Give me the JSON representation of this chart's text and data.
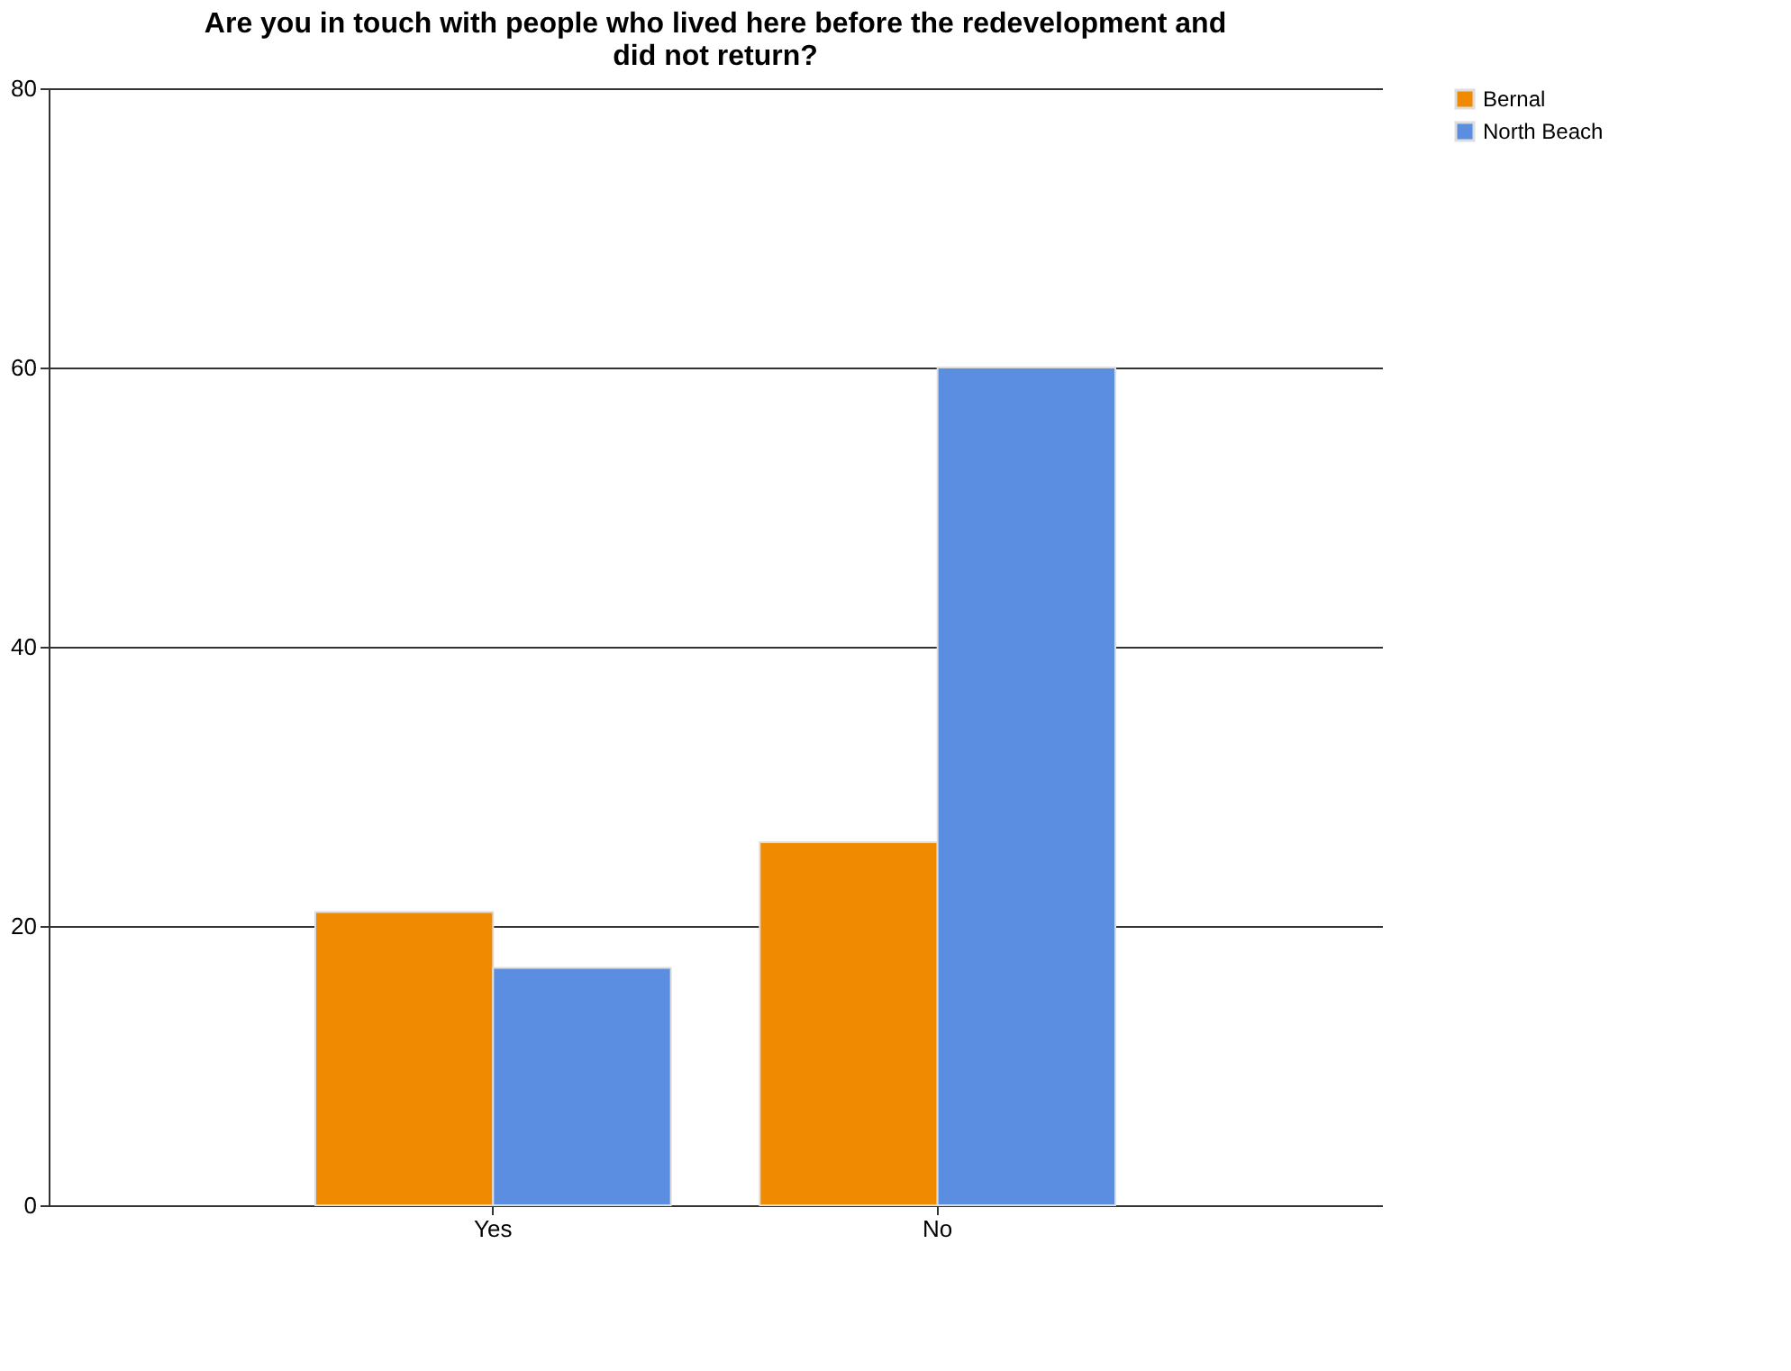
{
  "chart_data": {
    "type": "bar",
    "title": "Are you in touch with people who lived here before the redevelopment and did not return?",
    "categories": [
      "Yes",
      "No"
    ],
    "series": [
      {
        "name": "Bernal",
        "color": "#f08a00",
        "values": [
          21,
          26
        ]
      },
      {
        "name": "North Beach",
        "color": "#5b8de0",
        "values": [
          17,
          60
        ]
      }
    ],
    "ylim": [
      0,
      80
    ],
    "yticks": [
      0,
      20,
      40,
      60,
      80
    ],
    "grid": "y",
    "legend": "right"
  }
}
